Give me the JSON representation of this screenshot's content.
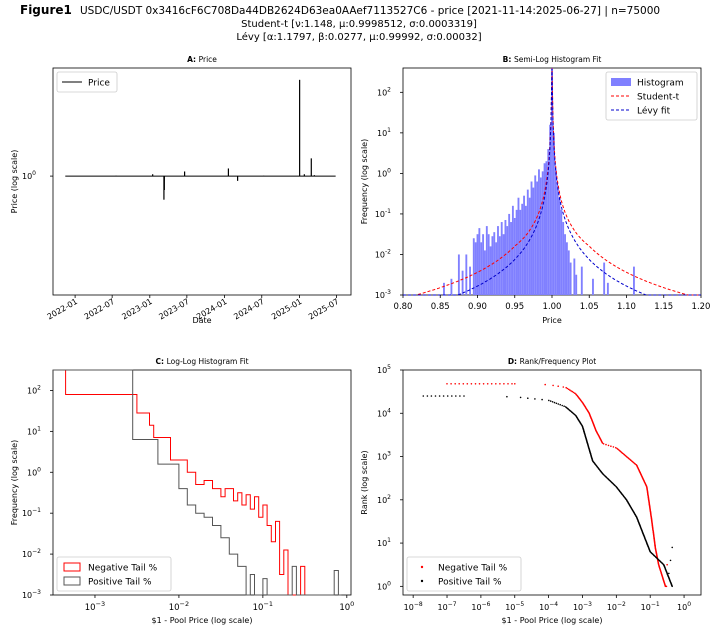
{
  "figure": {
    "label": "Figure1",
    "title_line1": "USDC/USDT 0x3416cF6C708Da44DB2624D63ea0AAef7113527C6 - price  [2021-11-14:2025-06-27] | n=75000",
    "title_line2": "Student-t [ν:1.148, μ:0.9998512, σ:0.0003319]",
    "title_line3": "Lévy [α:1.1797, β:0.0277, μ:0.99992, σ:0.00032]"
  },
  "colors": {
    "histogram": "#8080ff",
    "student_t": "#ff0000",
    "levy": "#0000cc",
    "negative": "#ff0000",
    "positive": "#000000",
    "price": "#000000"
  },
  "chart_data": [
    {
      "id": "A",
      "type": "line",
      "title_prefix": "A",
      "title": "Price",
      "xlabel": "Date",
      "ylabel": "Price (log scale)",
      "y_scale": "log",
      "xlim": [
        "2021-09-15",
        "2025-09-10"
      ],
      "ylim_log10": [
        -0.33,
        0.3
      ],
      "yticks": [
        {
          "value": 1,
          "label": "10^0"
        }
      ],
      "xticks": [
        "2022-01",
        "2022-07",
        "2023-01",
        "2023-07",
        "2024-01",
        "2024-07",
        "2025-01",
        "2025-07"
      ],
      "legend": [
        "Price"
      ],
      "legend_position": "top-left",
      "baseline": 1.0,
      "spikes": [
        {
          "date": "2022-07-20",
          "value": 1.002
        },
        {
          "date": "2023-01-15",
          "value": 1.012
        },
        {
          "date": "2023-03-11",
          "value": 0.86
        },
        {
          "date": "2023-03-13",
          "value": 0.915
        },
        {
          "date": "2023-03-12",
          "value": 0.972
        },
        {
          "date": "2023-06-20",
          "value": 1.03
        },
        {
          "date": "2024-01-20",
          "value": 1.05
        },
        {
          "date": "2024-03-05",
          "value": 0.97
        },
        {
          "date": "2024-07-10",
          "value": 1.002
        },
        {
          "date": "2025-01-02",
          "value": 1.85
        },
        {
          "date": "2025-01-25",
          "value": 1.012
        },
        {
          "date": "2025-02-28",
          "value": 1.12
        },
        {
          "date": "2025-03-15",
          "value": 1.006
        }
      ]
    },
    {
      "id": "B",
      "type": "bar",
      "title_prefix": "B",
      "title": "Semi-Log Histogram Fit",
      "xlabel": "Price",
      "ylabel": "Frequency (log scale)",
      "y_scale": "log",
      "xlim": [
        0.8,
        1.2
      ],
      "ylim_log10": [
        -3,
        2.6
      ],
      "xticks": [
        0.8,
        0.85,
        0.9,
        0.95,
        1.0,
        1.05,
        1.1,
        1.15,
        1.2
      ],
      "xtick_labels": [
        "0.80",
        "0.85",
        "0.90",
        "0.95",
        "1.00",
        "1.05",
        "1.10",
        "1.15",
        "1.20"
      ],
      "yticks_exp": [
        -3,
        -2,
        -1,
        0,
        1,
        2
      ],
      "legend": [
        "Histogram",
        "Student-t",
        "Lévy fit"
      ],
      "legend_position": "top-right",
      "histogram": {
        "bin_width": 0.0025,
        "bins": [
          [
            0.855,
            -2.7
          ],
          [
            0.865,
            -2.6
          ],
          [
            0.875,
            -2.0
          ],
          [
            0.88,
            -2.4
          ],
          [
            0.885,
            -2.0
          ],
          [
            0.89,
            -2.3
          ],
          [
            0.895,
            -1.6
          ],
          [
            0.8975,
            -1.7
          ],
          [
            0.9,
            -1.5
          ],
          [
            0.9025,
            -1.35
          ],
          [
            0.905,
            -1.7
          ],
          [
            0.9075,
            -1.5
          ],
          [
            0.91,
            -1.9
          ],
          [
            0.9125,
            -1.3
          ],
          [
            0.915,
            -1.5
          ],
          [
            0.9175,
            -1.8
          ],
          [
            0.92,
            -1.55
          ],
          [
            0.9225,
            -1.45
          ],
          [
            0.925,
            -1.7
          ],
          [
            0.9275,
            -1.3
          ],
          [
            0.93,
            -1.55
          ],
          [
            0.9325,
            -1.2
          ],
          [
            0.935,
            -1.5
          ],
          [
            0.9375,
            -1.15
          ],
          [
            0.94,
            -1.3
          ],
          [
            0.9425,
            -1.0
          ],
          [
            0.945,
            -1.2
          ],
          [
            0.9475,
            -0.8
          ],
          [
            0.95,
            -1.1
          ],
          [
            0.9525,
            -0.9
          ],
          [
            0.955,
            -0.6
          ],
          [
            0.9575,
            -0.9
          ],
          [
            0.96,
            -0.75
          ],
          [
            0.9625,
            -0.55
          ],
          [
            0.965,
            -0.8
          ],
          [
            0.9675,
            -0.4
          ],
          [
            0.97,
            -0.6
          ],
          [
            0.9725,
            -0.2
          ],
          [
            0.975,
            -0.35
          ],
          [
            0.9775,
            -0.05
          ],
          [
            0.98,
            -0.2
          ],
          [
            0.9825,
            0.1
          ],
          [
            0.985,
            -0.1
          ],
          [
            0.9875,
            0.05
          ],
          [
            0.99,
            0.25
          ],
          [
            0.9925,
            0.3
          ],
          [
            0.995,
            0.6
          ],
          [
            0.9975,
            1.2
          ],
          [
            1.0,
            2.6
          ],
          [
            1.0025,
            1.0
          ],
          [
            1.005,
            0.1
          ],
          [
            1.0075,
            -0.3
          ],
          [
            1.01,
            -0.6
          ],
          [
            1.0125,
            -0.9
          ],
          [
            1.015,
            -1.2
          ],
          [
            1.0175,
            -1.5
          ],
          [
            1.02,
            -1.7
          ],
          [
            1.0225,
            -1.9
          ],
          [
            1.025,
            -2.2
          ],
          [
            1.03,
            -2.1
          ],
          [
            1.0325,
            -2.5
          ],
          [
            1.04,
            -2.3
          ],
          [
            1.055,
            -2.6
          ],
          [
            1.07,
            -2.2
          ],
          [
            1.075,
            -2.7
          ],
          [
            1.11,
            -2.3
          ]
        ]
      },
      "fits": [
        {
          "name": "Student-t",
          "peak": 1.0,
          "scale": 0.00033,
          "amp_log10": 2.6
        },
        {
          "name": "Lévy fit",
          "peak": 1.0,
          "scale": 0.00032,
          "amp_log10": 2.6
        }
      ]
    },
    {
      "id": "C",
      "type": "line",
      "title_prefix": "C",
      "title": "Log-Log Histogram Fit",
      "xlabel": "$1 - Pool Price (log scale)",
      "ylabel": "Frequency (log scale)",
      "x_scale": "log",
      "y_scale": "log",
      "xlim_log10": [
        -3.5,
        0.05
      ],
      "ylim_log10": [
        -3,
        2.5
      ],
      "xticks_exp": [
        -3,
        -2,
        -1,
        0
      ],
      "yticks_exp": [
        -3,
        -2,
        -1,
        0,
        1,
        2
      ],
      "legend": [
        "Negative Tail %",
        "Positive Tail %"
      ],
      "legend_position": "bottom-left",
      "series": [
        {
          "name": "Negative Tail %",
          "steps": [
            [
              -3.5,
              2.5
            ],
            [
              -3.35,
              1.9
            ],
            [
              -2.7,
              1.9
            ],
            [
              -2.5,
              1.45
            ],
            [
              -2.35,
              1.15
            ],
            [
              -2.3,
              0.85
            ],
            [
              -2.1,
              0.3
            ],
            [
              -1.9,
              0.0
            ],
            [
              -1.8,
              -0.3
            ],
            [
              -1.7,
              -0.2
            ],
            [
              -1.6,
              -0.4
            ],
            [
              -1.5,
              -0.6
            ],
            [
              -1.45,
              -0.4
            ],
            [
              -1.35,
              -0.7
            ],
            [
              -1.3,
              -0.5
            ],
            [
              -1.25,
              -0.8
            ],
            [
              -1.2,
              -0.55
            ],
            [
              -1.15,
              -0.9
            ],
            [
              -1.1,
              -0.6
            ],
            [
              -1.05,
              -1.1
            ],
            [
              -1.0,
              -0.8
            ],
            [
              -0.95,
              -1.3
            ],
            [
              -0.9,
              -1.7
            ],
            [
              -0.85,
              -1.2
            ],
            [
              -0.8,
              -2.5
            ],
            [
              -0.75,
              -1.9
            ],
            [
              -0.7,
              -3
            ],
            [
              -0.55,
              -2.3
            ],
            [
              -0.5,
              -3
            ]
          ]
        },
        {
          "name": "Positive Tail %",
          "steps": [
            [
              -3.5,
              2.5
            ],
            [
              -2.7,
              2.5
            ],
            [
              -2.55,
              0.8
            ],
            [
              -2.3,
              0.8
            ],
            [
              -2.25,
              0.2
            ],
            [
              -2.0,
              -0.4
            ],
            [
              -1.9,
              -0.8
            ],
            [
              -1.8,
              -1.0
            ],
            [
              -1.7,
              -1.1
            ],
            [
              -1.6,
              -1.3
            ],
            [
              -1.5,
              -1.6
            ],
            [
              -1.4,
              -2.0
            ],
            [
              -1.3,
              -2.3
            ],
            [
              -1.2,
              -3
            ],
            [
              -1.15,
              -2.5
            ],
            [
              -1.1,
              -3
            ],
            [
              -1.0,
              -2.6
            ],
            [
              -0.95,
              -3
            ],
            [
              -0.65,
              -2.3
            ],
            [
              -0.6,
              -3
            ],
            [
              -0.15,
              -2.4
            ],
            [
              -0.1,
              -3
            ]
          ]
        }
      ]
    },
    {
      "id": "D",
      "type": "scatter",
      "title_prefix": "D",
      "title": "Rank/Frequency Plot",
      "xlabel": "$1 - Pool Price (log scale)",
      "ylabel": "Rank (log scale)",
      "x_scale": "log",
      "y_scale": "log",
      "xlim_log10": [
        -8.3,
        0.5
      ],
      "ylim_log10": [
        -0.2,
        5.0
      ],
      "xticks_exp": [
        -8,
        -7,
        -6,
        -5,
        -4,
        -3,
        -2,
        -1,
        0
      ],
      "yticks_exp": [
        0,
        1,
        2,
        3,
        4,
        5
      ],
      "legend": [
        "Negative Tail %",
        "Positive Tail %"
      ],
      "legend_position": "bottom-left",
      "series": [
        {
          "name": "Negative Tail %",
          "curve": [
            [
              -7.0,
              4.68
            ],
            [
              -5.0,
              4.68
            ],
            [
              -4.0,
              4.66
            ],
            [
              -3.5,
              4.6
            ],
            [
              -3.2,
              4.45
            ],
            [
              -3.0,
              4.25
            ],
            [
              -2.8,
              4.0
            ],
            [
              -2.6,
              3.6
            ],
            [
              -2.4,
              3.3
            ],
            [
              -2.0,
              3.2
            ],
            [
              -1.7,
              3.0
            ],
            [
              -1.4,
              2.8
            ],
            [
              -1.1,
              2.3
            ],
            [
              -0.95,
              1.5
            ],
            [
              -0.85,
              0.9
            ],
            [
              -0.75,
              0.5
            ],
            [
              -0.55,
              0.0
            ]
          ]
        },
        {
          "name": "Positive Tail %",
          "curve": [
            [
              -7.7,
              4.4
            ],
            [
              -6.5,
              4.4
            ],
            [
              -5.0,
              4.38
            ],
            [
              -4.0,
              4.3
            ],
            [
              -3.5,
              4.15
            ],
            [
              -3.2,
              3.95
            ],
            [
              -3.0,
              3.7
            ],
            [
              -2.85,
              3.3
            ],
            [
              -2.7,
              2.9
            ],
            [
              -2.4,
              2.6
            ],
            [
              -2.0,
              2.3
            ],
            [
              -1.7,
              2.0
            ],
            [
              -1.4,
              1.6
            ],
            [
              -1.2,
              1.2
            ],
            [
              -1.0,
              0.8
            ],
            [
              -0.6,
              0.5
            ],
            [
              -0.35,
              0.0
            ]
          ]
        }
      ]
    }
  ]
}
